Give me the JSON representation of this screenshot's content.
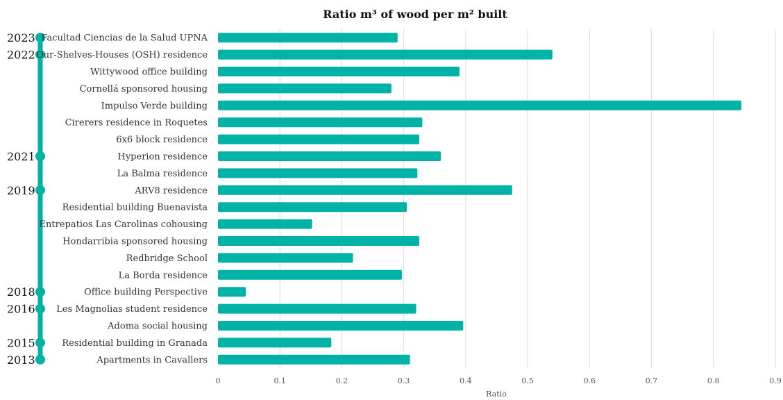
{
  "chart_data": {
    "type": "bar",
    "orientation": "horizontal",
    "title": "Ratio m³ of wood per m² built",
    "xlabel": "Ratio",
    "ylabel": "",
    "xlim": [
      0,
      0.9
    ],
    "xticks": [
      "0",
      "0.1",
      "0.2",
      "0.3",
      "0.4",
      "0.5",
      "0.6",
      "0.7",
      "0.8",
      "0.9"
    ],
    "grid": "vertical",
    "legend": "none",
    "bar_color": "#00b3a6",
    "timeline_color": "#00b3a6",
    "categories": [
      "Facultad Ciencias de la Salud UPNA",
      "Our-Shelves-Houses (OSH) residence",
      "Wittywood office building",
      "Cornellá sponsored housing",
      "Impulso Verde building",
      "Cirerers residence in Roquetes",
      "6x6 block residence",
      "Hyperion residence",
      "La Balma residence",
      "ARV8 residence",
      "Residential building Buenavista",
      "Entrepatios Las Carolinas cohousing",
      "Hondarribia sponsored housing",
      "Redbridge School",
      "La Borda residence",
      "Office building Perspective",
      "Les Magnolias student residence",
      "Adoma social housing",
      "Residential building in Granada",
      "Apartments in Cavallers"
    ],
    "values": [
      0.29,
      0.54,
      0.39,
      0.28,
      0.845,
      0.33,
      0.325,
      0.36,
      0.322,
      0.475,
      0.305,
      0.152,
      0.325,
      0.218,
      0.297,
      0.045,
      0.32,
      0.396,
      0.183,
      0.31
    ],
    "timeline": [
      {
        "year": "2023",
        "index": 0
      },
      {
        "year": "2022",
        "index": 1
      },
      {
        "year": "2021",
        "index": 7
      },
      {
        "year": "2019",
        "index": 9
      },
      {
        "year": "2018",
        "index": 15
      },
      {
        "year": "2016",
        "index": 16
      },
      {
        "year": "2015",
        "index": 18
      },
      {
        "year": "2013",
        "index": 19
      }
    ]
  }
}
